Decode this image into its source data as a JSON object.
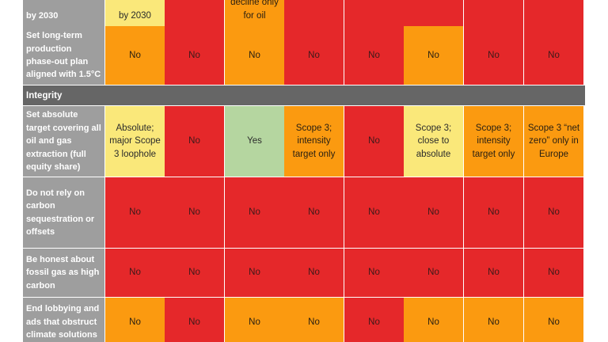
{
  "colors": {
    "red": "#e5282a",
    "orange": "#fb9a10",
    "yellow": "#fae87a",
    "green": "#b5d6a0",
    "label_bg": "#9e9e9e",
    "section_bg": "#666666"
  },
  "section": {
    "label": "Integrity"
  },
  "rows": [
    {
      "label": "by 2030",
      "cells": [
        {
          "text": "by 2030",
          "color": "yellow"
        },
        {
          "text": "",
          "color": "red"
        },
        {
          "text": "decline only for oil",
          "color": "orange"
        },
        {
          "text": "",
          "color": "red"
        },
        {
          "text": "",
          "color": "red"
        },
        {
          "text": "",
          "color": "red"
        },
        {
          "text": "",
          "color": "red"
        },
        {
          "text": "",
          "color": "red"
        }
      ]
    },
    {
      "label": "Set long-term production phase-out plan aligned with 1.5°C",
      "cells": [
        {
          "text": "No",
          "color": "orange"
        },
        {
          "text": "No",
          "color": "red"
        },
        {
          "text": "No",
          "color": "orange"
        },
        {
          "text": "No",
          "color": "red"
        },
        {
          "text": "No",
          "color": "red"
        },
        {
          "text": "No",
          "color": "orange"
        },
        {
          "text": "No",
          "color": "red"
        },
        {
          "text": "No",
          "color": "red"
        }
      ]
    },
    {
      "label": "Set absolute target covering all oil and gas extraction (full equity share)",
      "cells": [
        {
          "text": "Absolute; major Scope 3 loophole",
          "color": "yellow"
        },
        {
          "text": "No",
          "color": "red"
        },
        {
          "text": "Yes",
          "color": "green"
        },
        {
          "text": "Scope 3; intensity target only",
          "color": "orange"
        },
        {
          "text": "No",
          "color": "red"
        },
        {
          "text": "Scope 3; close to absolute",
          "color": "yellow"
        },
        {
          "text": "Scope 3; intensity target only",
          "color": "orange"
        },
        {
          "text": "Scope 3 “net zero” only in Europe",
          "color": "orange"
        }
      ]
    },
    {
      "label": "Do not rely on carbon sequestration or offsets",
      "cells": [
        {
          "text": "No",
          "color": "red"
        },
        {
          "text": "No",
          "color": "red"
        },
        {
          "text": "No",
          "color": "red"
        },
        {
          "text": "No",
          "color": "red"
        },
        {
          "text": "No",
          "color": "red"
        },
        {
          "text": "No",
          "color": "red"
        },
        {
          "text": "No",
          "color": "red"
        },
        {
          "text": "No",
          "color": "red"
        }
      ]
    },
    {
      "label": "Be honest about fossil gas as high carbon",
      "cells": [
        {
          "text": "No",
          "color": "red"
        },
        {
          "text": "No",
          "color": "red"
        },
        {
          "text": "No",
          "color": "red"
        },
        {
          "text": "No",
          "color": "red"
        },
        {
          "text": "No",
          "color": "red"
        },
        {
          "text": "No",
          "color": "red"
        },
        {
          "text": "No",
          "color": "red"
        },
        {
          "text": "No",
          "color": "red"
        }
      ]
    },
    {
      "label": "End lobbying and ads that obstruct climate solutions",
      "cells": [
        {
          "text": "No",
          "color": "orange"
        },
        {
          "text": "No",
          "color": "red"
        },
        {
          "text": "No",
          "color": "orange"
        },
        {
          "text": "No",
          "color": "orange"
        },
        {
          "text": "No",
          "color": "red"
        },
        {
          "text": "No",
          "color": "orange"
        },
        {
          "text": "No",
          "color": "orange"
        },
        {
          "text": "No",
          "color": "orange"
        }
      ]
    }
  ]
}
